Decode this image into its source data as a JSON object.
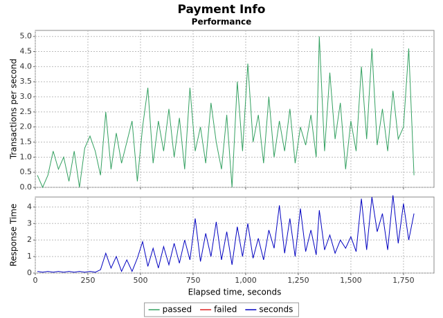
{
  "chart_data": [
    {
      "type": "line",
      "title": "Payment Info",
      "subtitle": "Performance",
      "ylabel": "Transactions per second",
      "x": [
        10,
        35,
        60,
        85,
        110,
        135,
        160,
        185,
        210,
        235,
        260,
        285,
        310,
        335,
        360,
        385,
        410,
        435,
        460,
        485,
        510,
        535,
        560,
        585,
        610,
        635,
        660,
        685,
        710,
        735,
        760,
        785,
        810,
        835,
        860,
        885,
        910,
        935,
        960,
        985,
        1010,
        1035,
        1060,
        1085,
        1110,
        1135,
        1160,
        1185,
        1210,
        1235,
        1260,
        1285,
        1310,
        1335,
        1350,
        1375,
        1400,
        1425,
        1450,
        1475,
        1500,
        1525,
        1550,
        1575,
        1600,
        1625,
        1650,
        1675,
        1700,
        1725,
        1750,
        1775,
        1800
      ],
      "series": [
        {
          "name": "passed",
          "color": "#33a060",
          "values": [
            0.4,
            0,
            0.4,
            1.2,
            0.6,
            1.0,
            0.2,
            1.2,
            0,
            1.3,
            1.7,
            1.2,
            0.4,
            2.5,
            0.6,
            1.8,
            0.8,
            1.5,
            2.2,
            0.2,
            2.0,
            3.3,
            0.8,
            2.2,
            1.2,
            2.6,
            1.0,
            2.3,
            0.6,
            3.3,
            1.2,
            2.0,
            0.8,
            2.8,
            1.5,
            0.6,
            2.4,
            0.0,
            3.5,
            1.2,
            4.1,
            1.5,
            2.4,
            0.8,
            3.0,
            1.0,
            2.2,
            1.2,
            2.6,
            0.8,
            2.0,
            1.4,
            2.4,
            1.0,
            5.0,
            1.2,
            3.8,
            1.6,
            2.8,
            0.6,
            2.2,
            1.2,
            4.0,
            1.6,
            4.6,
            1.4,
            2.6,
            1.2,
            3.2,
            1.6,
            2.0,
            4.6,
            0.4
          ]
        },
        {
          "name": "failed",
          "color": "#dd2222",
          "values": [
            null,
            null,
            null,
            null,
            null,
            null,
            null,
            null,
            null,
            null,
            null,
            null,
            null,
            null,
            null,
            null,
            null,
            null,
            null,
            null,
            null,
            null,
            null,
            null,
            null,
            null,
            null,
            null,
            null,
            null,
            null,
            null,
            null,
            null,
            null,
            null,
            null,
            null,
            null,
            null,
            null,
            null,
            null,
            null,
            null,
            null,
            null,
            null,
            null,
            null,
            null,
            null,
            null,
            null,
            null,
            null,
            null,
            null,
            null,
            null,
            null,
            null,
            null,
            null,
            null,
            null,
            null,
            null,
            null,
            null,
            null,
            null,
            null
          ]
        }
      ],
      "xlim": [
        0,
        1895
      ],
      "xticks": [
        0,
        250,
        500,
        750,
        1000,
        1250,
        1500,
        1750
      ],
      "ylim": [
        0,
        5.2
      ],
      "yticks": [
        {
          "value": 0,
          "label": "0.0"
        },
        {
          "value": 0.5,
          "label": "0.5"
        },
        {
          "value": 1,
          "label": "1.0"
        },
        {
          "value": 1.5,
          "label": "1.5"
        },
        {
          "value": 2,
          "label": "2.0"
        },
        {
          "value": 2.5,
          "label": "2.5"
        },
        {
          "value": 3,
          "label": "3.0"
        },
        {
          "value": 3.5,
          "label": "3.5"
        },
        {
          "value": 4,
          "label": "4.0"
        },
        {
          "value": 4.5,
          "label": "4.5"
        },
        {
          "value": 5,
          "label": "5.0"
        }
      ],
      "grid": true
    },
    {
      "type": "line",
      "ylabel": "Response Time",
      "xlabel": "Elapsed time, seconds",
      "x": [
        10,
        35,
        60,
        85,
        110,
        135,
        160,
        185,
        210,
        235,
        260,
        285,
        310,
        335,
        360,
        385,
        410,
        435,
        460,
        485,
        510,
        535,
        560,
        585,
        610,
        635,
        660,
        685,
        710,
        735,
        760,
        785,
        810,
        835,
        860,
        885,
        910,
        935,
        960,
        985,
        1010,
        1035,
        1060,
        1085,
        1110,
        1135,
        1160,
        1185,
        1210,
        1235,
        1260,
        1285,
        1310,
        1335,
        1350,
        1375,
        1400,
        1425,
        1450,
        1475,
        1500,
        1525,
        1550,
        1575,
        1600,
        1625,
        1650,
        1675,
        1700,
        1725,
        1750,
        1775,
        1800
      ],
      "series": [
        {
          "name": "seconds",
          "color": "#0000c0",
          "values": [
            0.1,
            0.05,
            0.1,
            0.05,
            0.1,
            0.05,
            0.1,
            0.05,
            0.1,
            0.05,
            0.1,
            0.05,
            0.2,
            1.2,
            0.3,
            1.0,
            0.1,
            0.8,
            0.1,
            0.9,
            1.9,
            0.4,
            1.5,
            0.3,
            1.6,
            0.5,
            1.8,
            0.6,
            2.0,
            0.8,
            3.3,
            0.7,
            2.4,
            1.0,
            3.1,
            0.8,
            2.5,
            0.5,
            2.8,
            1.0,
            3.0,
            0.9,
            2.1,
            0.8,
            2.6,
            1.5,
            4.1,
            1.2,
            3.3,
            1.0,
            3.9,
            1.3,
            2.6,
            1.1,
            3.8,
            1.4,
            2.3,
            1.2,
            2.0,
            1.5,
            2.2,
            1.3,
            4.5,
            1.4,
            4.6,
            2.5,
            3.6,
            1.4,
            4.7,
            1.8,
            4.2,
            2.0,
            3.6
          ]
        }
      ],
      "xlim": [
        0,
        1895
      ],
      "xticks": [
        0,
        250,
        500,
        750,
        {
          "value": 1000,
          "label": "1,000"
        },
        {
          "value": 1250,
          "label": "1,250"
        },
        {
          "value": 1500,
          "label": "1,500"
        },
        {
          "value": 1750,
          "label": "1,750"
        }
      ],
      "ylim": [
        0,
        4.6
      ],
      "yticks": [
        0,
        1,
        2,
        3,
        4
      ],
      "grid": true
    }
  ]
}
